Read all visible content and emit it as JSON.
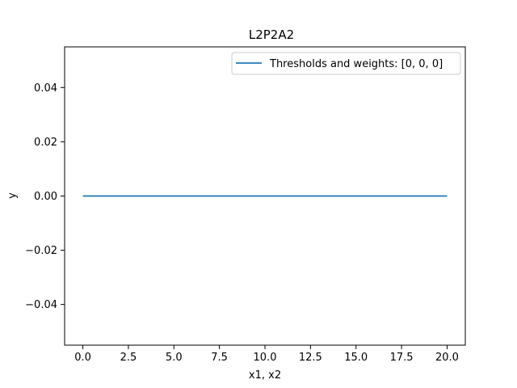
{
  "chart_data": {
    "type": "line",
    "title": "L2P2A2",
    "xlabel": "x1, x2",
    "ylabel": "y",
    "xlim": [
      -1,
      21
    ],
    "ylim": [
      -0.055,
      0.055
    ],
    "xticks": [
      0.0,
      2.5,
      5.0,
      7.5,
      10.0,
      12.5,
      15.0,
      17.5,
      20.0
    ],
    "xtick_labels": [
      "0.0",
      "2.5",
      "5.0",
      "7.5",
      "10.0",
      "12.5",
      "15.0",
      "17.5",
      "20.0"
    ],
    "yticks": [
      -0.04,
      -0.02,
      0.0,
      0.02,
      0.04
    ],
    "ytick_labels": [
      "−0.04",
      "−0.02",
      "0.00",
      "0.02",
      "0.04"
    ],
    "grid": false,
    "legend_position": "top-right",
    "series": [
      {
        "name": "Thresholds and weights: [0, 0, 0]",
        "color": "#1f77b4",
        "x": [
          0,
          20
        ],
        "y": [
          0,
          0
        ]
      }
    ]
  }
}
